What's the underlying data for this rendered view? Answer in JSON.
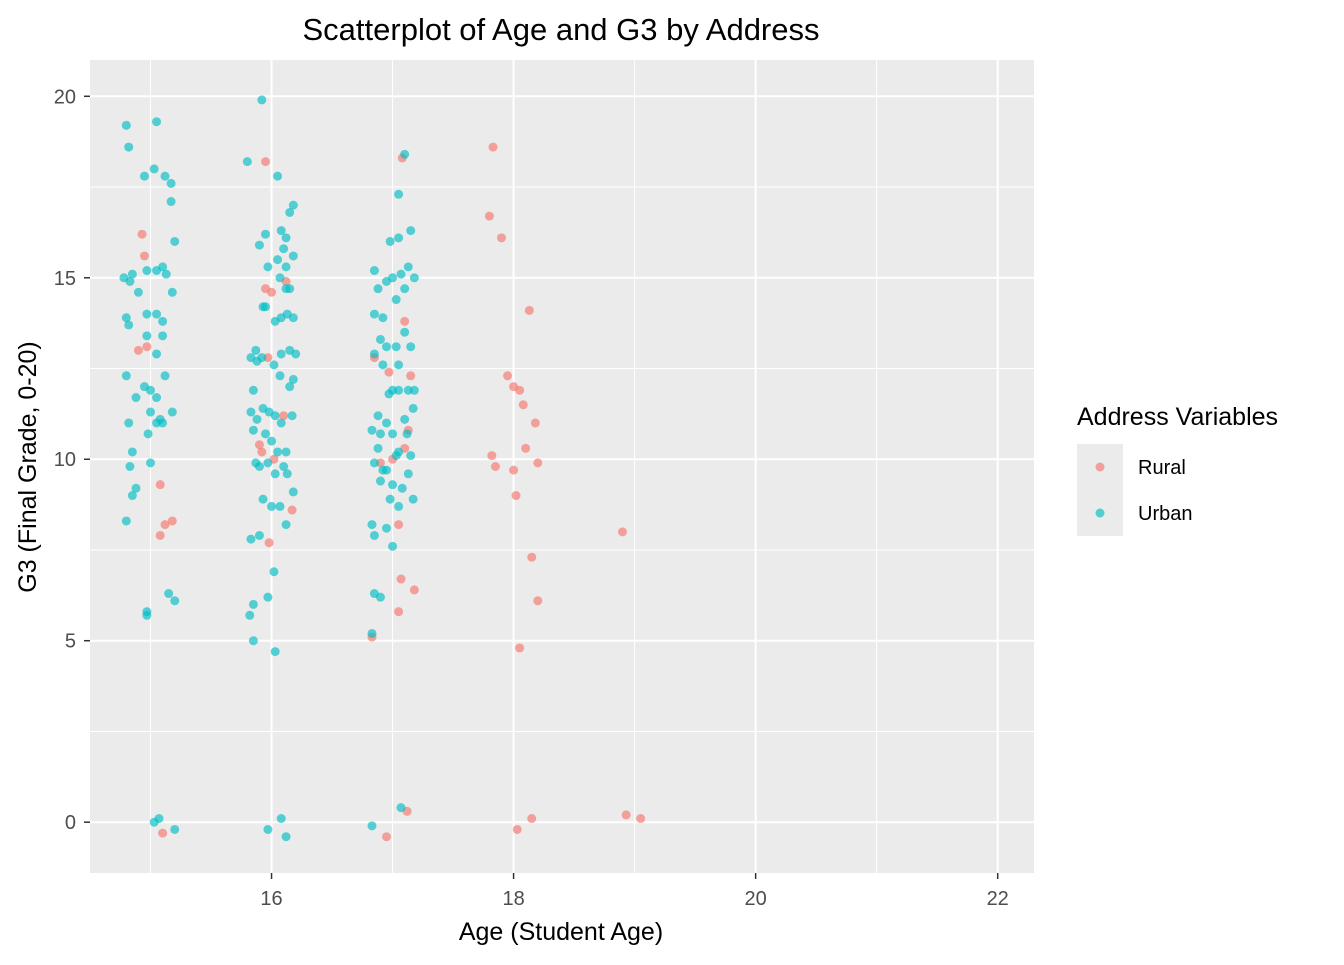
{
  "chart_data": {
    "type": "scatter",
    "title": "Scatterplot of Age and G3 by Address",
    "xlabel": "Age (Student Age)",
    "ylabel": "G3 (Final Grade, 0-20)",
    "xlim": [
      14.5,
      22.3
    ],
    "ylim": [
      -1.4,
      21.0
    ],
    "xticks": [
      16,
      18,
      20,
      22
    ],
    "xtick_labels": [
      "16",
      "18",
      "20",
      "22"
    ],
    "yticks": [
      0,
      5,
      10,
      15,
      20
    ],
    "ytick_labels": [
      "0",
      "5",
      "10",
      "15",
      "20"
    ],
    "grid": true,
    "legend": {
      "title": "Address Variables",
      "position": "right",
      "entries": [
        {
          "label": "Rural",
          "color": "#F8766D"
        },
        {
          "label": "Urban",
          "color": "#00BFC4"
        }
      ]
    },
    "colors": {
      "panel": "#EBEBEB",
      "grid": "#FFFFFF",
      "Rural": "#F8766D",
      "Urban": "#00BFC4"
    },
    "series": [
      {
        "name": "Rural",
        "color": "#F8766D",
        "points": [
          [
            14.93,
            16.2
          ],
          [
            14.95,
            15.6
          ],
          [
            14.9,
            13.0
          ],
          [
            14.97,
            13.1
          ],
          [
            15.08,
            9.3
          ],
          [
            15.08,
            7.9
          ],
          [
            15.12,
            8.2
          ],
          [
            15.18,
            8.3
          ],
          [
            15.1,
            -0.3
          ],
          [
            15.95,
            18.2
          ],
          [
            15.95,
            14.7
          ],
          [
            16.0,
            14.6
          ],
          [
            15.97,
            12.8
          ],
          [
            16.12,
            14.9
          ],
          [
            15.9,
            10.4
          ],
          [
            15.92,
            10.2
          ],
          [
            15.98,
            7.7
          ],
          [
            16.02,
            10.0
          ],
          [
            16.17,
            8.6
          ],
          [
            16.1,
            11.2
          ],
          [
            17.08,
            18.3
          ],
          [
            16.85,
            12.8
          ],
          [
            16.9,
            9.9
          ],
          [
            16.97,
            12.4
          ],
          [
            17.1,
            13.8
          ],
          [
            17.15,
            12.3
          ],
          [
            17.13,
            10.8
          ],
          [
            17.1,
            10.3
          ],
          [
            17.05,
            8.2
          ],
          [
            17.07,
            6.7
          ],
          [
            17.05,
            5.8
          ],
          [
            17.18,
            6.4
          ],
          [
            16.83,
            5.1
          ],
          [
            16.95,
            -0.4
          ],
          [
            17.12,
            0.3
          ],
          [
            17.0,
            10.0
          ],
          [
            17.8,
            16.7
          ],
          [
            17.83,
            18.6
          ],
          [
            17.9,
            16.1
          ],
          [
            17.95,
            12.3
          ],
          [
            18.0,
            12.0
          ],
          [
            18.05,
            11.9
          ],
          [
            18.1,
            10.3
          ],
          [
            18.08,
            11.5
          ],
          [
            18.13,
            14.1
          ],
          [
            17.82,
            10.1
          ],
          [
            17.85,
            9.8
          ],
          [
            18.0,
            9.7
          ],
          [
            18.02,
            9.0
          ],
          [
            18.2,
            9.9
          ],
          [
            18.15,
            7.3
          ],
          [
            18.2,
            6.1
          ],
          [
            18.05,
            4.8
          ],
          [
            18.03,
            -0.2
          ],
          [
            18.15,
            0.1
          ],
          [
            18.18,
            11.0
          ],
          [
            18.9,
            8.0
          ],
          [
            18.93,
            0.2
          ],
          [
            19.05,
            0.1
          ]
        ]
      },
      {
        "name": "Urban",
        "color": "#00BFC4",
        "points": [
          [
            14.8,
            19.2
          ],
          [
            14.82,
            18.6
          ],
          [
            14.78,
            15.0
          ],
          [
            14.83,
            14.9
          ],
          [
            14.85,
            15.1
          ],
          [
            14.9,
            14.6
          ],
          [
            14.8,
            13.9
          ],
          [
            14.82,
            13.7
          ],
          [
            14.8,
            12.3
          ],
          [
            14.88,
            11.7
          ],
          [
            14.82,
            11.0
          ],
          [
            14.85,
            10.2
          ],
          [
            14.83,
            9.8
          ],
          [
            14.88,
            9.2
          ],
          [
            14.85,
            9.0
          ],
          [
            14.8,
            8.3
          ],
          [
            14.95,
            17.8
          ],
          [
            15.03,
            18.0
          ],
          [
            15.05,
            19.3
          ],
          [
            15.12,
            17.8
          ],
          [
            15.17,
            17.6
          ],
          [
            15.17,
            17.1
          ],
          [
            15.2,
            16.0
          ],
          [
            14.97,
            15.2
          ],
          [
            15.05,
            15.2
          ],
          [
            15.1,
            15.3
          ],
          [
            15.13,
            15.1
          ],
          [
            15.18,
            14.6
          ],
          [
            14.97,
            14.0
          ],
          [
            15.05,
            14.0
          ],
          [
            15.1,
            13.8
          ],
          [
            14.97,
            13.4
          ],
          [
            15.1,
            13.4
          ],
          [
            15.05,
            12.9
          ],
          [
            15.12,
            12.3
          ],
          [
            14.95,
            12.0
          ],
          [
            15.0,
            11.9
          ],
          [
            15.05,
            11.7
          ],
          [
            15.0,
            11.3
          ],
          [
            15.08,
            11.1
          ],
          [
            15.05,
            11.0
          ],
          [
            15.18,
            11.3
          ],
          [
            14.98,
            10.7
          ],
          [
            15.1,
            11.0
          ],
          [
            15.0,
            9.9
          ],
          [
            14.97,
            5.8
          ],
          [
            14.97,
            5.7
          ],
          [
            15.15,
            6.3
          ],
          [
            15.2,
            6.1
          ],
          [
            15.03,
            0.0
          ],
          [
            15.07,
            0.1
          ],
          [
            15.2,
            -0.2
          ],
          [
            15.8,
            18.2
          ],
          [
            15.92,
            19.9
          ],
          [
            15.83,
            12.8
          ],
          [
            15.88,
            12.7
          ],
          [
            15.9,
            15.9
          ],
          [
            15.95,
            16.2
          ],
          [
            16.05,
            17.8
          ],
          [
            16.08,
            16.3
          ],
          [
            16.12,
            16.1
          ],
          [
            16.18,
            17.0
          ],
          [
            16.15,
            16.8
          ],
          [
            16.1,
            15.8
          ],
          [
            16.05,
            15.5
          ],
          [
            16.12,
            15.3
          ],
          [
            16.18,
            15.6
          ],
          [
            15.97,
            15.3
          ],
          [
            16.07,
            15.0
          ],
          [
            16.12,
            14.7
          ],
          [
            16.15,
            14.7
          ],
          [
            15.93,
            14.2
          ],
          [
            15.95,
            14.2
          ],
          [
            16.03,
            13.8
          ],
          [
            16.08,
            13.9
          ],
          [
            16.13,
            14.0
          ],
          [
            16.18,
            13.9
          ],
          [
            15.87,
            13.0
          ],
          [
            15.92,
            12.8
          ],
          [
            16.08,
            12.9
          ],
          [
            16.15,
            13.0
          ],
          [
            16.2,
            12.9
          ],
          [
            16.02,
            12.6
          ],
          [
            16.07,
            12.3
          ],
          [
            15.85,
            11.9
          ],
          [
            16.15,
            12.0
          ],
          [
            16.18,
            12.2
          ],
          [
            15.83,
            11.3
          ],
          [
            15.88,
            11.1
          ],
          [
            15.93,
            11.4
          ],
          [
            15.98,
            11.3
          ],
          [
            16.03,
            11.2
          ],
          [
            16.08,
            11.0
          ],
          [
            16.17,
            11.2
          ],
          [
            15.85,
            10.8
          ],
          [
            15.95,
            10.7
          ],
          [
            16.0,
            10.5
          ],
          [
            16.05,
            10.2
          ],
          [
            16.12,
            10.2
          ],
          [
            15.87,
            9.9
          ],
          [
            15.9,
            9.8
          ],
          [
            15.97,
            9.9
          ],
          [
            16.03,
            9.6
          ],
          [
            16.1,
            9.8
          ],
          [
            16.13,
            9.6
          ],
          [
            15.93,
            8.9
          ],
          [
            16.0,
            8.7
          ],
          [
            16.07,
            8.7
          ],
          [
            16.12,
            8.2
          ],
          [
            16.18,
            9.1
          ],
          [
            15.9,
            7.9
          ],
          [
            15.83,
            7.8
          ],
          [
            16.02,
            6.9
          ],
          [
            15.85,
            6.0
          ],
          [
            15.82,
            5.7
          ],
          [
            15.85,
            5.0
          ],
          [
            15.97,
            6.2
          ],
          [
            16.03,
            4.7
          ],
          [
            15.97,
            -0.2
          ],
          [
            16.08,
            0.1
          ],
          [
            16.12,
            -0.4
          ],
          [
            16.85,
            15.2
          ],
          [
            16.88,
            14.7
          ],
          [
            16.95,
            14.9
          ],
          [
            17.0,
            15.0
          ],
          [
            17.07,
            15.1
          ],
          [
            17.03,
            14.4
          ],
          [
            17.1,
            14.7
          ],
          [
            17.13,
            15.3
          ],
          [
            17.18,
            15.0
          ],
          [
            16.98,
            16.0
          ],
          [
            17.05,
            16.1
          ],
          [
            17.15,
            16.3
          ],
          [
            17.05,
            17.3
          ],
          [
            17.1,
            18.4
          ],
          [
            16.85,
            14.0
          ],
          [
            16.92,
            13.9
          ],
          [
            16.9,
            13.3
          ],
          [
            16.95,
            13.1
          ],
          [
            17.03,
            13.1
          ],
          [
            17.1,
            13.5
          ],
          [
            17.15,
            13.1
          ],
          [
            16.85,
            12.9
          ],
          [
            16.92,
            12.6
          ],
          [
            17.05,
            12.6
          ],
          [
            16.97,
            11.8
          ],
          [
            17.0,
            11.9
          ],
          [
            17.05,
            11.9
          ],
          [
            17.13,
            11.9
          ],
          [
            17.18,
            11.9
          ],
          [
            17.17,
            11.4
          ],
          [
            16.88,
            11.2
          ],
          [
            16.95,
            11.0
          ],
          [
            17.1,
            11.1
          ],
          [
            16.83,
            10.8
          ],
          [
            16.9,
            10.7
          ],
          [
            16.88,
            10.3
          ],
          [
            17.0,
            10.7
          ],
          [
            17.05,
            10.2
          ],
          [
            17.12,
            10.7
          ],
          [
            17.15,
            10.1
          ],
          [
            17.03,
            10.1
          ],
          [
            17.13,
            9.6
          ],
          [
            16.85,
            9.9
          ],
          [
            16.9,
            9.4
          ],
          [
            16.92,
            9.7
          ],
          [
            16.95,
            9.7
          ],
          [
            17.0,
            9.3
          ],
          [
            17.05,
            8.7
          ],
          [
            16.98,
            8.9
          ],
          [
            17.08,
            9.2
          ],
          [
            17.17,
            8.9
          ],
          [
            16.83,
            8.2
          ],
          [
            16.85,
            7.9
          ],
          [
            16.95,
            8.1
          ],
          [
            17.0,
            7.6
          ],
          [
            16.85,
            6.3
          ],
          [
            16.9,
            6.2
          ],
          [
            16.83,
            5.2
          ],
          [
            16.83,
            -0.1
          ],
          [
            17.07,
            0.4
          ]
        ]
      }
    ]
  }
}
